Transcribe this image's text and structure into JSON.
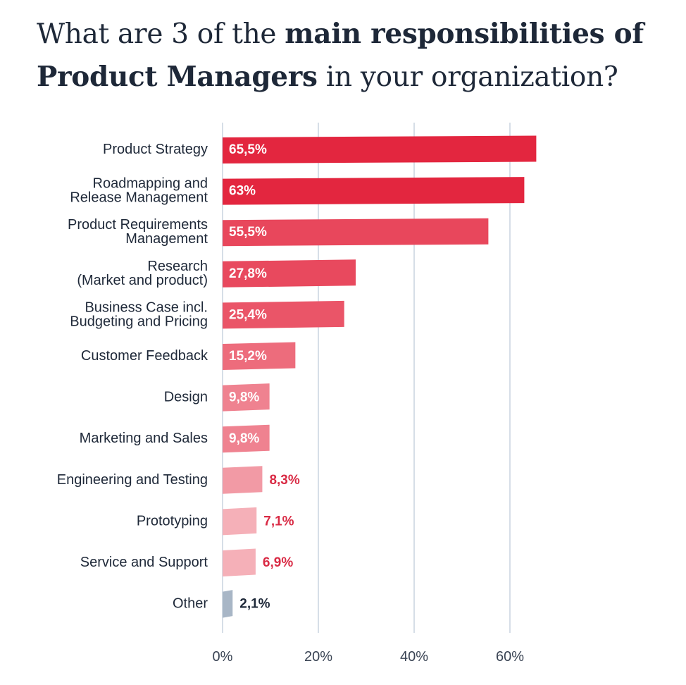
{
  "title": {
    "line1_regular": "What are 3 of the ",
    "line1_bold": "main responsibilities of",
    "line2_bold": "Product Managers",
    "line2_regular": " in your organization?"
  },
  "chart_data": {
    "type": "bar",
    "orientation": "horizontal",
    "title": "What are 3 of the main responsibilities of Product Managers in your organization?",
    "categories": [
      [
        "Product Strategy"
      ],
      [
        "Roadmapping and",
        "Release Management"
      ],
      [
        "Product Requirements",
        "Management"
      ],
      [
        "Research",
        "(Market and product)"
      ],
      [
        "Business Case incl.",
        "Budgeting and Pricing"
      ],
      [
        "Customer Feedback"
      ],
      [
        "Design"
      ],
      [
        "Marketing and Sales"
      ],
      [
        "Engineering and Testing"
      ],
      [
        "Prototyping"
      ],
      [
        "Service and Support"
      ],
      [
        "Other"
      ]
    ],
    "values": [
      65.5,
      63,
      55.5,
      27.8,
      25.4,
      15.2,
      9.8,
      9.8,
      8.3,
      7.1,
      6.9,
      2.1
    ],
    "value_labels": [
      "65,5%",
      "63%",
      "55,5%",
      "27,8%",
      "25,4%",
      "15,2%",
      "9,8%",
      "9,8%",
      "8,3%",
      "7,1%",
      "6,9%",
      "2,1%"
    ],
    "bar_colors": [
      "#e3263f",
      "#e3263f",
      "#e8475c",
      "#e8495e",
      "#ea5568",
      "#ed6c7c",
      "#ef8290",
      "#ef8290",
      "#f29aa5",
      "#f5b0b8",
      "#f5b0b8",
      "#a8b6c6"
    ],
    "xlim": [
      0,
      70
    ],
    "xticks": [
      0,
      20,
      40,
      60
    ],
    "xtick_labels": [
      "0%",
      "20%",
      "40%",
      "60%"
    ],
    "grid": true,
    "legend": "none",
    "colors": {
      "text_dark": "#1e2838",
      "value_outside": "#d92b45",
      "value_outside_other": "#1e2838",
      "grid": "#c9d3df"
    }
  }
}
